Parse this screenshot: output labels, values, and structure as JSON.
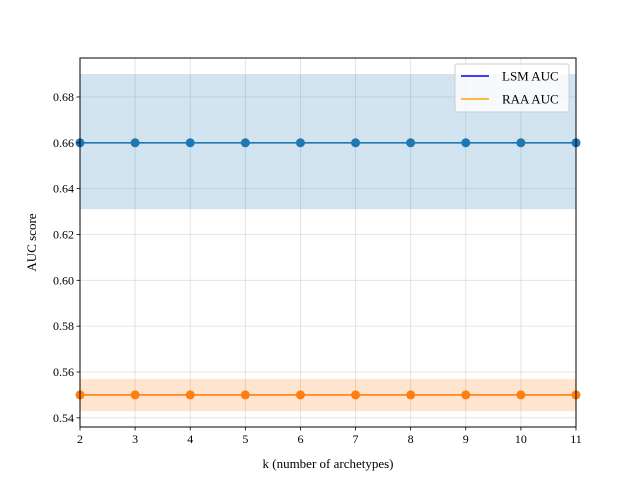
{
  "chart_data": {
    "type": "line",
    "title": "",
    "xlabel": "k (number of archetypes)",
    "ylabel": "AUC score",
    "x": [
      2,
      3,
      4,
      5,
      6,
      7,
      8,
      9,
      10,
      11
    ],
    "xlim": [
      2,
      11
    ],
    "ylim": [
      0.536,
      0.697
    ],
    "xticks": [
      "2",
      "3",
      "4",
      "5",
      "6",
      "7",
      "8",
      "9",
      "10",
      "11"
    ],
    "yticks": [
      "0.54",
      "0.56",
      "0.58",
      "0.60",
      "0.62",
      "0.64",
      "0.66",
      "0.68"
    ],
    "grid": true,
    "legend_position": "top-right",
    "legend": [
      {
        "label": "LSM AUC",
        "color": "#0000ff"
      },
      {
        "label": "RAA AUC",
        "color": "#ffa500"
      }
    ],
    "series": [
      {
        "values": [
          0.66,
          0.66,
          0.66,
          0.66,
          0.66,
          0.66,
          0.66,
          0.66,
          0.66,
          0.66
        ],
        "lower": [
          0.631,
          0.631,
          0.631,
          0.631,
          0.631,
          0.631,
          0.631,
          0.631,
          0.631,
          0.631
        ],
        "upper": [
          0.69,
          0.69,
          0.69,
          0.69,
          0.69,
          0.69,
          0.69,
          0.69,
          0.69,
          0.69
        ],
        "color": "#1f77b4"
      },
      {
        "values": [
          0.55,
          0.55,
          0.55,
          0.55,
          0.55,
          0.55,
          0.55,
          0.55,
          0.55,
          0.55
        ],
        "lower": [
          0.543,
          0.543,
          0.543,
          0.543,
          0.543,
          0.543,
          0.543,
          0.543,
          0.543,
          0.543
        ],
        "upper": [
          0.557,
          0.557,
          0.557,
          0.557,
          0.557,
          0.557,
          0.557,
          0.557,
          0.557,
          0.557
        ],
        "color": "#ff7f0e"
      }
    ]
  }
}
